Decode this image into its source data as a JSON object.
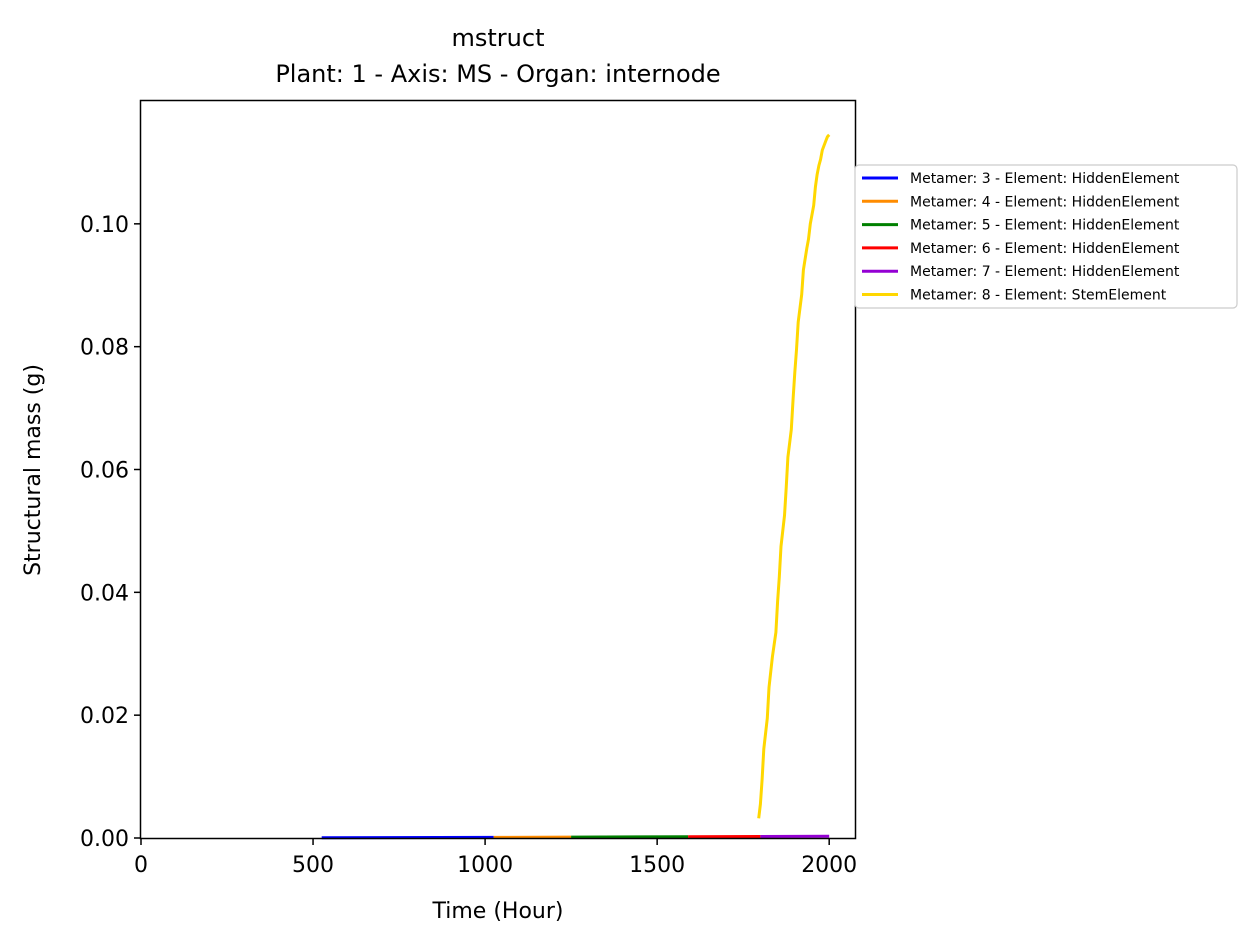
{
  "chart_data": {
    "type": "line",
    "title": "mstruct",
    "subtitle": "Plant: 1 - Axis: MS - Organ: internode",
    "xlabel": "Time (Hour)",
    "ylabel": "Structural mass (g)",
    "xlim": [
      0,
      2075
    ],
    "ylim": [
      0,
      0.12
    ],
    "xticks": [
      0,
      500,
      1000,
      1500,
      2000
    ],
    "xtick_labels": [
      "0",
      "500",
      "1000",
      "1500",
      "2000"
    ],
    "yticks": [
      0,
      0.02,
      0.04,
      0.06,
      0.08,
      0.1
    ],
    "ytick_labels": [
      "0.00",
      "0.02",
      "0.04",
      "0.06",
      "0.08",
      "0.10"
    ],
    "grid": false,
    "legend_position": "outside-right",
    "series": [
      {
        "name": "Metamer: 3 - Element: HiddenElement",
        "color": "#0000ff",
        "x": [
          525,
          1025
        ],
        "y": [
          5e-05,
          0.0001
        ]
      },
      {
        "name": "Metamer: 4 - Element: HiddenElement",
        "color": "#ff8c00",
        "x": [
          1025,
          1250
        ],
        "y": [
          0.0001,
          0.00015
        ]
      },
      {
        "name": "Metamer: 5 - Element: HiddenElement",
        "color": "#008000",
        "x": [
          1250,
          1590
        ],
        "y": [
          0.00015,
          0.0002
        ]
      },
      {
        "name": "Metamer: 6 - Element: HiddenElement",
        "color": "#ff0000",
        "x": [
          1590,
          1800
        ],
        "y": [
          0.0002,
          0.00025
        ]
      },
      {
        "name": "Metamer: 7 - Element: HiddenElement",
        "color": "#9400d3",
        "x": [
          1800,
          2000
        ],
        "y": [
          0.00025,
          0.0003
        ]
      },
      {
        "name": "Metamer: 8 - Element: StemElement",
        "color": "#ffd700",
        "x": [
          1795,
          1800,
          1805,
          1810,
          1820,
          1825,
          1835,
          1845,
          1850,
          1855,
          1860,
          1870,
          1875,
          1880,
          1890,
          1895,
          1900,
          1905,
          1910,
          1920,
          1925,
          1935,
          1940,
          1945,
          1955,
          1960,
          1965,
          1970,
          1975,
          1980,
          1990,
          1995,
          2000
        ],
        "y": [
          0.0032,
          0.0055,
          0.0095,
          0.0145,
          0.0195,
          0.0245,
          0.0295,
          0.0335,
          0.0385,
          0.0425,
          0.0475,
          0.0525,
          0.057,
          0.062,
          0.0665,
          0.0715,
          0.0758,
          0.0795,
          0.084,
          0.0885,
          0.0925,
          0.096,
          0.0975,
          0.1,
          0.103,
          0.106,
          0.108,
          0.1095,
          0.1105,
          0.112,
          0.1135,
          0.1142,
          0.1145
        ]
      }
    ]
  }
}
